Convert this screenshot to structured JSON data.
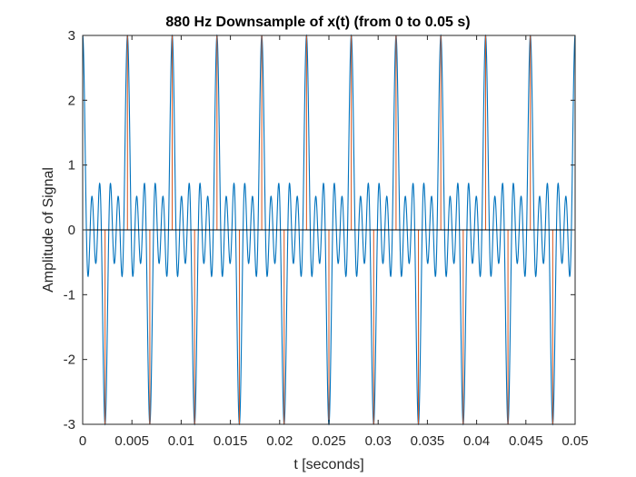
{
  "chart_data": {
    "type": "line",
    "title": "880 Hz Downsample of x(t) (from 0 to 0.05 s)",
    "xlabel": "t [seconds]",
    "ylabel": "Amplitude of Signal",
    "xlim": [
      0,
      0.05
    ],
    "ylim": [
      -3,
      3
    ],
    "xticks": [
      0,
      0.005,
      0.01,
      0.015,
      0.02,
      0.025,
      0.03,
      0.035,
      0.04,
      0.045,
      0.05
    ],
    "xtick_labels": [
      "0",
      "0.005",
      "0.01",
      "0.015",
      "0.02",
      "0.025",
      "0.03",
      "0.035",
      "0.04",
      "0.045",
      "0.05"
    ],
    "yticks": [
      -3,
      -2,
      -1,
      0,
      1,
      2,
      3
    ],
    "ytick_labels": [
      "-3",
      "-2",
      "-1",
      "0",
      "1",
      "2",
      "3"
    ],
    "grid": false,
    "zero_line": 0,
    "series": [
      {
        "style": "continuous",
        "color": "#0072BD",
        "expression": "cos(2*pi*220*t) + cos(2*pi*660*t) + cos(2*pi*1100*t)",
        "t_range": [
          0,
          0.05
        ]
      },
      {
        "style": "stem",
        "color": "#D95319",
        "sample_rate_hz": 880,
        "t_range": [
          0,
          0.05
        ]
      }
    ]
  },
  "colors": {
    "background": "#ffffff",
    "axes": "#262626",
    "continuous_series": "#0072BD",
    "sampled_series": "#D95319"
  }
}
